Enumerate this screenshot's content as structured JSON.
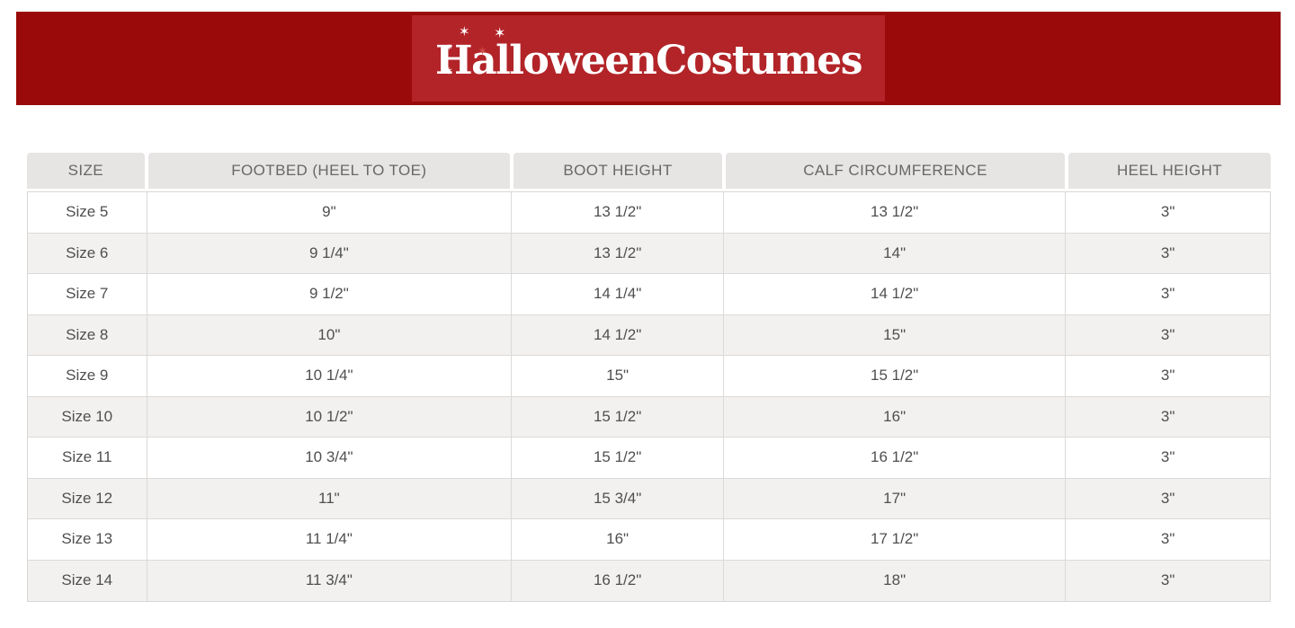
{
  "header": {
    "logo_text": "HalloweenCostumes",
    "star_glyph": "✶",
    "banner_color": "#9a0a0a",
    "logo_box_color": "#b22428"
  },
  "table": {
    "columns": [
      "SIZE",
      "FOOTBED (HEEL TO TOE)",
      "BOOT HEIGHT",
      "CALF CIRCUMFERENCE",
      "HEEL HEIGHT"
    ],
    "rows": [
      [
        "Size 5",
        "9\"",
        "13 1/2\"",
        "13 1/2\"",
        "3\""
      ],
      [
        "Size 6",
        "9 1/4\"",
        "13 1/2\"",
        "14\"",
        "3\""
      ],
      [
        "Size 7",
        "9 1/2\"",
        "14 1/4\"",
        "14 1/2\"",
        "3\""
      ],
      [
        "Size 8",
        "10\"",
        "14 1/2\"",
        "15\"",
        "3\""
      ],
      [
        "Size 9",
        "10 1/4\"",
        "15\"",
        "15 1/2\"",
        "3\""
      ],
      [
        "Size 10",
        "10 1/2\"",
        "15 1/2\"",
        "16\"",
        "3\""
      ],
      [
        "Size 11",
        "10 3/4\"",
        "15 1/2\"",
        "16 1/2\"",
        "3\""
      ],
      [
        "Size 12",
        "11\"",
        "15 3/4\"",
        "17\"",
        "3\""
      ],
      [
        "Size 13",
        "11 1/4\"",
        "16\"",
        "17 1/2\"",
        "3\""
      ],
      [
        "Size 14",
        "11 3/4\"",
        "16 1/2\"",
        "18\"",
        "3\""
      ]
    ]
  }
}
